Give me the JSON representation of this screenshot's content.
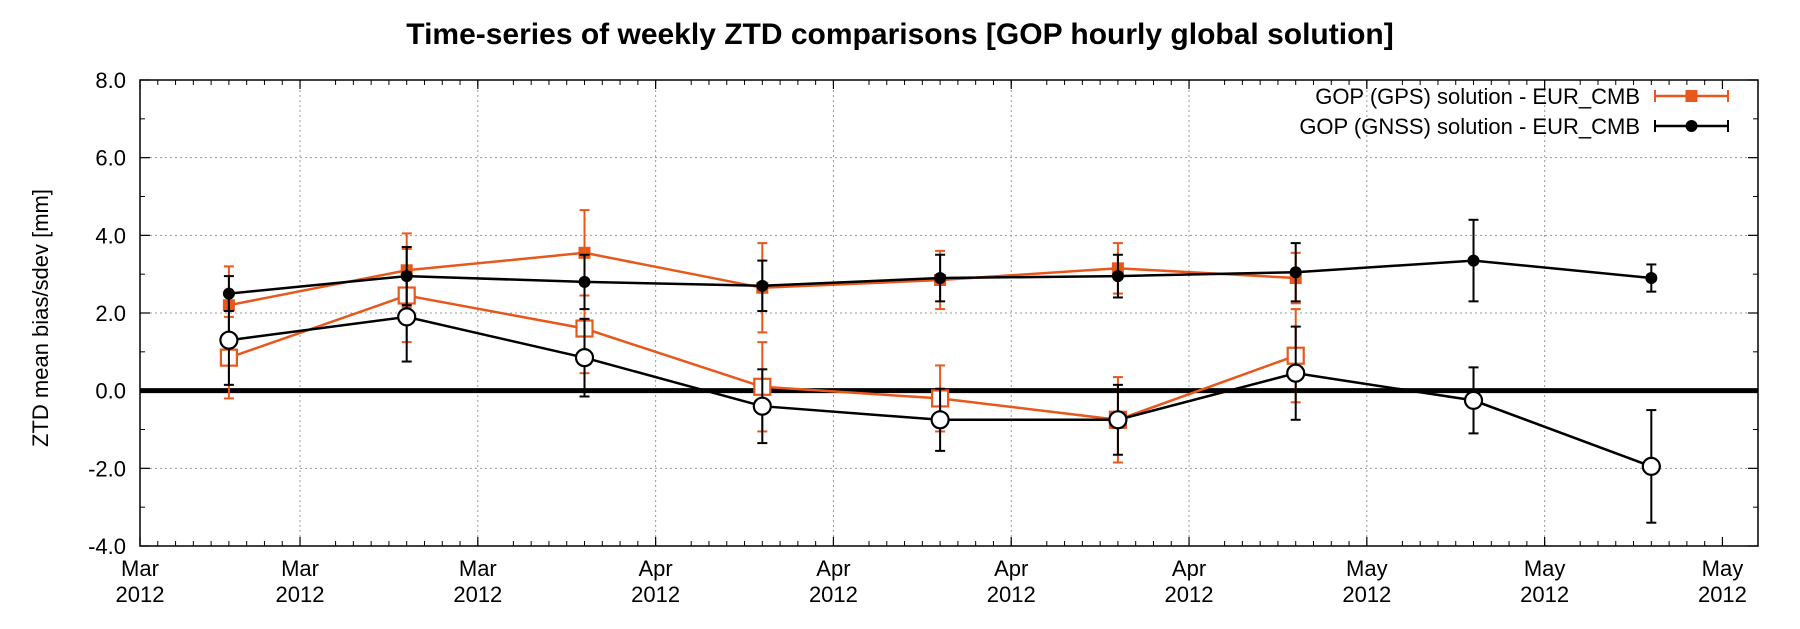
{
  "chart_data": {
    "type": "line",
    "title": "Time-series of weekly ZTD comparisons [GOP hourly global solution]",
    "xlabel": "",
    "ylabel": "ZTD mean bias/sdev [mm]",
    "ylim": [
      -4.0,
      8.0
    ],
    "xlim": [
      "2012-02-26",
      "2012-05-27"
    ],
    "grid": true,
    "legend_position": "top-right",
    "x_ticks": [
      {
        "x": "2012-02-26",
        "line1": "Mar",
        "line2": "2012"
      },
      {
        "x": "2012-03-06",
        "line1": "Mar",
        "line2": "2012"
      },
      {
        "x": "2012-03-16",
        "line1": "Mar",
        "line2": "2012"
      },
      {
        "x": "2012-03-26",
        "line1": "Apr",
        "line2": "2012"
      },
      {
        "x": "2012-04-05",
        "line1": "Apr",
        "line2": "2012"
      },
      {
        "x": "2012-04-15",
        "line1": "Apr",
        "line2": "2012"
      },
      {
        "x": "2012-04-25",
        "line1": "Apr",
        "line2": "2012"
      },
      {
        "x": "2012-05-05",
        "line1": "May",
        "line2": "2012"
      },
      {
        "x": "2012-05-15",
        "line1": "May",
        "line2": "2012"
      },
      {
        "x": "2012-05-25",
        "line1": "May",
        "line2": "2012"
      }
    ],
    "y_ticks": [
      "-4.0",
      "-2.0",
      "0.0",
      "2.0",
      "4.0",
      "6.0",
      "8.0"
    ],
    "x": [
      "2012-03-02",
      "2012-03-12",
      "2012-03-22",
      "2012-04-01",
      "2012-04-11",
      "2012-04-21",
      "2012-05-01",
      "2012-05-11",
      "2012-05-21"
    ],
    "series": [
      {
        "name": "GOP (GPS) solution - EUR_CMB",
        "color": "#e8581c",
        "sdev": [
          {
            "x": "2012-03-02",
            "y": 2.2,
            "err": 1.0
          },
          {
            "x": "2012-03-12",
            "y": 3.1,
            "err": 0.95
          },
          {
            "x": "2012-03-22",
            "y": 3.55,
            "err": 1.1
          },
          {
            "x": "2012-04-01",
            "y": 2.65,
            "err": 1.15
          },
          {
            "x": "2012-04-11",
            "y": 2.85,
            "err": 0.75
          },
          {
            "x": "2012-04-21",
            "y": 3.15,
            "err": 0.65
          },
          {
            "x": "2012-05-01",
            "y": 2.9,
            "err": 0.65
          }
        ],
        "bias": [
          {
            "x": "2012-03-02",
            "y": 0.85,
            "err": 1.05
          },
          {
            "x": "2012-03-12",
            "y": 2.45,
            "err": 1.2
          },
          {
            "x": "2012-03-22",
            "y": 1.6,
            "err": 1.15
          },
          {
            "x": "2012-04-01",
            "y": 0.1,
            "err": 1.15
          },
          {
            "x": "2012-04-11",
            "y": -0.2,
            "err": 0.85
          },
          {
            "x": "2012-04-21",
            "y": -0.75,
            "err": 1.1
          },
          {
            "x": "2012-05-01",
            "y": 0.9,
            "err": 1.2
          }
        ]
      },
      {
        "name": "GOP (GNSS) solution - EUR_CMB",
        "color": "#000000",
        "sdev": [
          {
            "x": "2012-03-02",
            "y": 2.5,
            "err": 0.45
          },
          {
            "x": "2012-03-12",
            "y": 2.95,
            "err": 0.75
          },
          {
            "x": "2012-03-22",
            "y": 2.8,
            "err": 0.7
          },
          {
            "x": "2012-04-01",
            "y": 2.7,
            "err": 0.65
          },
          {
            "x": "2012-04-11",
            "y": 2.9,
            "err": 0.6
          },
          {
            "x": "2012-04-21",
            "y": 2.95,
            "err": 0.55
          },
          {
            "x": "2012-05-01",
            "y": 3.05,
            "err": 0.75
          },
          {
            "x": "2012-05-11",
            "y": 3.35,
            "err": 1.05
          },
          {
            "x": "2012-05-21",
            "y": 2.9,
            "err": 0.35
          }
        ],
        "bias": [
          {
            "x": "2012-03-02",
            "y": 1.3,
            "err": 1.15
          },
          {
            "x": "2012-03-12",
            "y": 1.9,
            "err": 1.15
          },
          {
            "x": "2012-03-22",
            "y": 0.85,
            "err": 1.0
          },
          {
            "x": "2012-04-01",
            "y": -0.4,
            "err": 0.95
          },
          {
            "x": "2012-04-11",
            "y": -0.75,
            "err": 0.8
          },
          {
            "x": "2012-04-21",
            "y": -0.75,
            "err": 0.9
          },
          {
            "x": "2012-05-01",
            "y": 0.45,
            "err": 1.2
          },
          {
            "x": "2012-05-11",
            "y": -0.25,
            "err": 0.85
          },
          {
            "x": "2012-05-21",
            "y": -1.95,
            "err": 1.45
          }
        ]
      }
    ]
  }
}
